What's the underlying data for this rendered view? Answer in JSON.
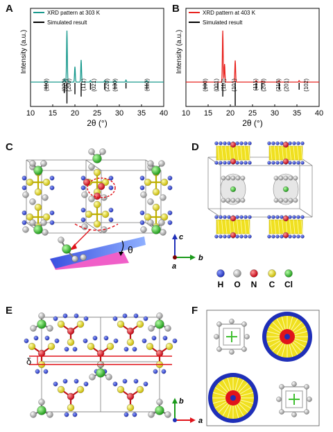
{
  "panels": {
    "A": "A",
    "B": "B",
    "C": "C",
    "D": "D",
    "E": "E",
    "F": "F"
  },
  "chart_data": [
    {
      "type": "line",
      "panel": "A",
      "xlabel": "2θ (°)",
      "ylabel": "Intensity (a.u.)",
      "xlim": [
        10,
        40
      ],
      "xticks": [
        10,
        15,
        20,
        25,
        30,
        35,
        40
      ],
      "legend": [
        "XRD pattern at 303 K",
        "Simulated result"
      ],
      "series_color": "#1a9a8e",
      "peaks": [
        {
          "x": 13.5,
          "y": 0.02
        },
        {
          "x": 17.6,
          "y": 0.06
        },
        {
          "x": 18.2,
          "y": 1.0
        },
        {
          "x": 20.0,
          "y": 0.3
        },
        {
          "x": 21.4,
          "y": 0.43
        },
        {
          "x": 23.5,
          "y": 0.03
        },
        {
          "x": 26.7,
          "y": 0.03
        },
        {
          "x": 29.0,
          "y": 0.03
        },
        {
          "x": 31.5,
          "y": 0.04
        },
        {
          "x": 36.2,
          "y": 0.03
        }
      ],
      "sim_lines": [
        {
          "x": 13.5,
          "h": 0.3
        },
        {
          "x": 17.6,
          "h": 0.45
        },
        {
          "x": 18.2,
          "h": 0.9
        },
        {
          "x": 20.0,
          "h": 0.5
        },
        {
          "x": 21.4,
          "h": 0.6
        },
        {
          "x": 23.5,
          "h": 0.3
        },
        {
          "x": 26.7,
          "h": 0.3
        },
        {
          "x": 29.0,
          "h": 0.3
        },
        {
          "x": 31.5,
          "h": 0.25
        },
        {
          "x": 36.2,
          "h": 0.3
        }
      ],
      "hkl": [
        {
          "x": 13.5,
          "label": "(110)"
        },
        {
          "x": 17.6,
          "label": "(020)"
        },
        {
          "x": 18.6,
          "label": "(200)"
        },
        {
          "x": 21.9,
          "label": "(111)"
        },
        {
          "x": 24.2,
          "label": "(021)"
        },
        {
          "x": 27.2,
          "label": "(220)"
        },
        {
          "x": 29.0,
          "label": "(130)"
        },
        {
          "x": 36.2,
          "label": "(112)"
        }
      ]
    },
    {
      "type": "line",
      "panel": "B",
      "xlabel": "2θ (°)",
      "ylabel": "Intensity (a.u.)",
      "xlim": [
        10,
        40
      ],
      "xticks": [
        10,
        15,
        20,
        25,
        30,
        35,
        40
      ],
      "legend": [
        "XRD pattern at 403 K",
        "Simulated  result"
      ],
      "series_color": "#e8231f",
      "peaks": [
        {
          "x": 18.3,
          "y": 1.0
        },
        {
          "x": 18.7,
          "y": 0.35
        },
        {
          "x": 21.1,
          "y": 0.42
        },
        {
          "x": 25.8,
          "y": 0.03
        },
        {
          "x": 27.1,
          "y": 0.02
        },
        {
          "x": 31.0,
          "y": 0.03
        },
        {
          "x": 35.5,
          "y": 0.03
        }
      ],
      "sim_lines": [
        {
          "x": 14.3,
          "h": 0.3
        },
        {
          "x": 17.2,
          "h": 0.3
        },
        {
          "x": 18.3,
          "h": 0.6
        },
        {
          "x": 21.1,
          "h": 1.0
        },
        {
          "x": 25.8,
          "h": 0.3
        },
        {
          "x": 27.1,
          "h": 0.3
        },
        {
          "x": 31.0,
          "h": 0.3
        },
        {
          "x": 35.5,
          "h": 0.3
        }
      ],
      "hkl": [
        {
          "x": 14.3,
          "label": "(100)"
        },
        {
          "x": 16.8,
          "label": "(001)"
        },
        {
          "x": 18.4,
          "label": "(110)"
        },
        {
          "x": 20.8,
          "label": "(101)"
        },
        {
          "x": 25.6,
          "label": "(111)"
        },
        {
          "x": 27.4,
          "label": "(200)"
        },
        {
          "x": 30.8,
          "label": "(210)"
        },
        {
          "x": 32.6,
          "label": "(201)"
        },
        {
          "x": 37.0,
          "label": "(102)"
        }
      ]
    }
  ],
  "axes_C": {
    "c": "c",
    "b": "b",
    "a": "a"
  },
  "angle_label": "θ",
  "legend_D": [
    {
      "sym": "H",
      "color": "#1f2fb8"
    },
    {
      "sym": "O",
      "color": "#bdbdbd"
    },
    {
      "sym": "N",
      "color": "#e0141b"
    },
    {
      "sym": "C",
      "color": "#f0e020"
    },
    {
      "sym": "Cl",
      "color": "#3fbf2f"
    }
  ],
  "delta_label": "δ",
  "axes_E": {
    "b": "b",
    "a": "a"
  }
}
